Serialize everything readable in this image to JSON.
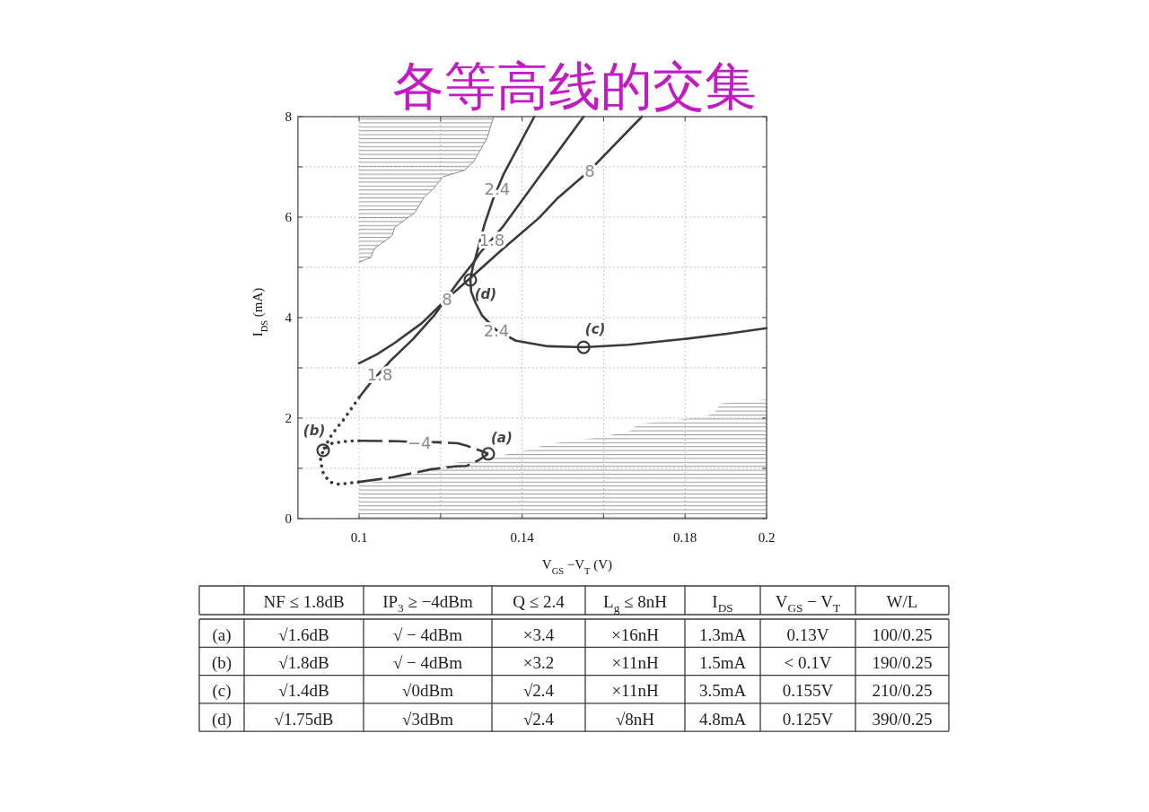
{
  "chart_data": [
    {
      "type": "line",
      "title": "各等高线的交集",
      "xlabel": "V$_{GS}$ −V$_{T}$ (V)",
      "ylabel": "I$_{DS}$ (mA)",
      "xlim": [
        0.085,
        0.2
      ],
      "ylim": [
        0,
        8
      ],
      "xticks": [
        0.1,
        {
          "value": 0.12,
          "label": null
        },
        0.14,
        {
          "value": 0.16,
          "label": null
        },
        0.18,
        0.2
      ],
      "yticks": [
        0,
        {
          "value": 1,
          "label": null
        },
        2,
        {
          "value": 3,
          "label": null
        },
        4,
        {
          "value": 5,
          "label": null
        },
        6,
        {
          "value": 7,
          "label": null
        },
        8
      ],
      "grid": true,
      "series": [
        {
          "type": "line",
          "color": "#8c8c8c",
          "line_style": "solid",
          "x": [
            0.1,
            0.1029,
            0.1037,
            0.1081,
            0.1088,
            0.1137,
            0.1159,
            0.1183,
            0.1205,
            0.1258,
            0.1282,
            0.1315,
            0.133
          ],
          "values": [
            5.1,
            5.2,
            5.37,
            5.63,
            5.8,
            6.09,
            6.39,
            6.57,
            6.8,
            6.93,
            7.11,
            7.59,
            8
          ],
          "lower": [
            5.1,
            5.2,
            5.37,
            5.63,
            5.8,
            6.09,
            6.39,
            6.57,
            6.8,
            6.93,
            7.11,
            7.59,
            8
          ],
          "upper": [
            8,
            8,
            8,
            8,
            8,
            8,
            8,
            8,
            8,
            8,
            8,
            8,
            8
          ]
        },
        {
          "type": "area",
          "color": "#8c8c8c",
          "x": [
            0.1,
            0.1088,
            0.1176,
            0.1236,
            0.1324,
            0.1425,
            0.1463,
            0.1599,
            0.1667,
            0.1683,
            0.1778,
            0.1866,
            0.1877,
            0.1885,
            0.2
          ],
          "values": [
            0.68,
            0.8,
            0.95,
            1.11,
            1.21,
            1.39,
            1.48,
            1.63,
            1.75,
            1.88,
            1.96,
            2.07,
            2.16,
            2.29,
            2.38
          ]
        },
        {
          "type": "line",
          "color": "#3a3a3a",
          "line_style": "solid",
          "x": [
            0.143,
            0.1355,
            0.1328,
            0.1308,
            0.1286,
            0.128,
            0.1273,
            0.1275,
            0.1286,
            0.1302,
            0.1337,
            0.1385,
            0.1463,
            0.1551,
            0.1661,
            0.1793,
            0.1903,
            0.2
          ],
          "values": [
            8,
            6.86,
            6.34,
            5.86,
            5.2,
            5.04,
            4.75,
            4.52,
            4.29,
            4.04,
            3.75,
            3.54,
            3.43,
            3.41,
            3.46,
            3.57,
            3.68,
            3.79
          ]
        },
        {
          "type": "line",
          "color": "#3a3a3a",
          "line_style": "solid",
          "x": [
            0.1551,
            0.1485,
            0.1441,
            0.1352,
            0.1297,
            0.128,
            0.1242,
            0.1187,
            0.1132,
            0.1077,
            0.1026,
            0.1
          ],
          "values": [
            8,
            7.27,
            6.79,
            5.8,
            5.29,
            5.09,
            4.7,
            4.07,
            3.57,
            3.14,
            2.68,
            2.41
          ]
        },
        {
          "type": "line",
          "color": "#3a3a3a",
          "line_style": "solid",
          "x": [
            0.1694,
            0.1566,
            0.1485,
            0.1441,
            0.1352,
            0.128,
            0.1216,
            0.1154,
            0.1088,
            0.1044,
            0.1
          ],
          "values": [
            8,
            6.93,
            6.36,
            5.98,
            5.36,
            4.84,
            4.38,
            3.89,
            3.5,
            3.27,
            3.09
          ]
        },
        {
          "type": "line",
          "color": "#3a3a3a",
          "line_style": "dashed",
          "x": [
            0.1,
            0.1095,
            0.1148,
            0.1192,
            0.1242,
            0.1264,
            0.1302,
            0.1317
          ],
          "values": [
            1.55,
            1.54,
            1.52,
            1.52,
            1.5,
            1.45,
            1.34,
            1.29
          ]
        },
        {
          "type": "line",
          "color": "#3a3a3a",
          "line_style": "dashed",
          "x": [
            0.1,
            0.1081,
            0.1176,
            0.1236,
            0.1264,
            0.1293,
            0.1317
          ],
          "values": [
            0.73,
            0.82,
            0.98,
            1.04,
            1.05,
            1.16,
            1.29
          ]
        },
        {
          "type": "line",
          "color": "#3a3a3a",
          "line_style": "dotted",
          "x": [
            0.1,
            0.0982,
            0.0963,
            0.0945,
            0.093,
            0.0912
          ],
          "values": [
            2.41,
            2.2,
            1.98,
            1.8,
            1.63,
            1.36
          ]
        },
        {
          "type": "line",
          "color": "#3a3a3a",
          "line_style": "dotted",
          "x": [
            0.1,
            0.0971,
            0.0934,
            0.0912,
            0.0905,
            0.0912,
            0.0927,
            0.0952,
            0.0978,
            0.1
          ],
          "values": [
            1.55,
            1.54,
            1.5,
            1.36,
            1.16,
            0.91,
            0.73,
            0.68,
            0.71,
            0.73
          ]
        },
        {
          "type": "scatter",
          "color": "#3a3a3a",
          "marker": "circle",
          "x": [
            0.1317,
            0.0912,
            0.1551,
            0.1273
          ],
          "values": [
            1.29,
            1.36,
            3.41,
            4.75
          ]
        }
      ],
      "annotations": [
        {
          "text": "2.4",
          "x": 0.1339,
          "y": 6.57
        },
        {
          "text": "2.4",
          "x": 0.1337,
          "y": 3.75
        },
        {
          "text": "1.8",
          "x": 0.1326,
          "y": 5.55
        },
        {
          "text": "1.8",
          "x": 0.1051,
          "y": 2.88
        },
        {
          "text": "8",
          "x": 0.1566,
          "y": 6.93
        },
        {
          "text": "8",
          "x": 0.1216,
          "y": 4.38
        },
        {
          "text": "−4",
          "x": 0.1148,
          "y": 1.52
        },
        {
          "text": "(a)",
          "x": 0.1317,
          "y": 1.29
        },
        {
          "text": "(b)",
          "x": 0.0912,
          "y": 1.36
        },
        {
          "text": "(c)",
          "x": 0.1551,
          "y": 3.41
        },
        {
          "text": "(d)",
          "x": 0.1273,
          "y": 4.75
        }
      ]
    },
    {
      "type": "other",
      "categories": [
        null,
        "NF ≤ 1.8dB",
        "IP$_{3}$ ≥ −4dBm",
        "Q ≤ 2.4",
        "L$_{g}$ ≤ 8nH",
        "I$_{DS}$",
        "V$_{GS}$ − V$_{T}$",
        "W/L"
      ],
      "y_categories": [
        "(a)",
        "(b)",
        "(c)",
        "(d)"
      ],
      "cell_labels": [
        [
          "√1.6dB",
          "√ − 4dBm",
          "×3.4",
          "×16nH",
          "1.3mA",
          "0.13V",
          "100/0.25"
        ],
        [
          "√1.8dB",
          "√ − 4dBm",
          "×3.2",
          "×11nH",
          "1.5mA",
          "< 0.1V",
          "190/0.25"
        ],
        [
          "√1.4dB",
          "√0dBm",
          "√2.4",
          "×11nH",
          "3.5mA",
          "0.155V",
          "210/0.25"
        ],
        [
          "√1.75dB",
          "√3dBm",
          "√2.4",
          "√8nH",
          "4.8mA",
          "0.125V",
          "390/0.25"
        ]
      ]
    }
  ]
}
